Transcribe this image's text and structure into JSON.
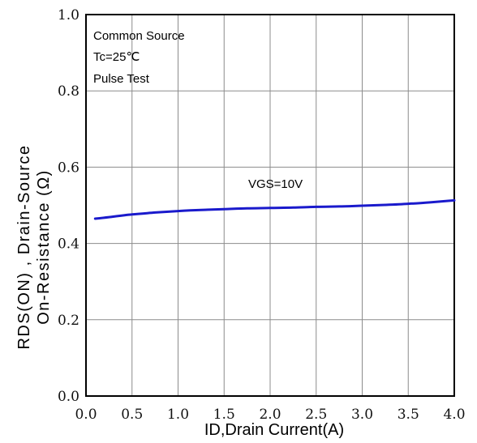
{
  "chart_data": {
    "type": "line",
    "xlabel": "ID,Drain Current(A)",
    "ylabel_line1": "RDS(ON) , Drain-Source",
    "ylabel_line2": "On-Resistance (Ω)",
    "xlim": [
      0.0,
      4.0
    ],
    "ylim": [
      0.0,
      1.0
    ],
    "x_ticks": [
      "0.0",
      "0.5",
      "1.0",
      "1.5",
      "2.0",
      "2.5",
      "3.0",
      "3.5",
      "4.0"
    ],
    "y_ticks": [
      "0.0",
      "0.2",
      "0.4",
      "0.6",
      "0.8",
      "1.0"
    ],
    "grid": true,
    "annotations": [
      "Common Source",
      "Tc=25℃",
      "Pulse Test"
    ],
    "series": [
      {
        "name": "VGS=10V",
        "color": "#1a1acc",
        "x": [
          0.1,
          0.25,
          0.5,
          0.75,
          1.0,
          1.25,
          1.5,
          1.75,
          2.0,
          2.25,
          2.5,
          2.75,
          3.0,
          3.25,
          3.5,
          3.75,
          4.0
        ],
        "y": [
          0.465,
          0.469,
          0.476,
          0.481,
          0.485,
          0.488,
          0.49,
          0.492,
          0.493,
          0.494,
          0.496,
          0.497,
          0.499,
          0.501,
          0.504,
          0.508,
          0.513
        ]
      }
    ]
  }
}
